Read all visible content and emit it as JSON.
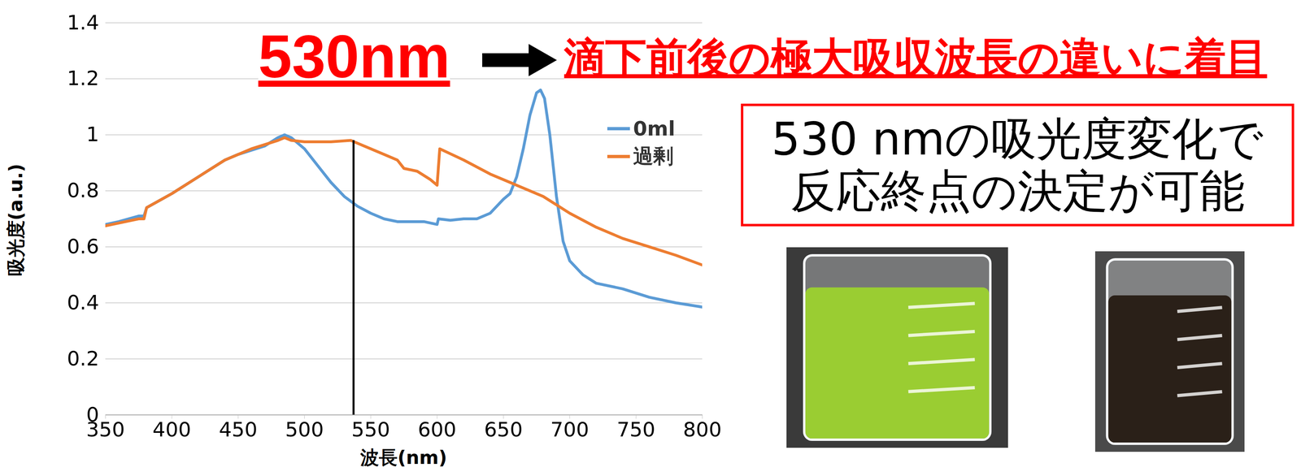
{
  "chart_data": {
    "type": "line",
    "x_label": "波長(nm)",
    "y_label": "吸光度(a.u.)",
    "xlim": [
      350,
      800
    ],
    "xticks": [
      350,
      400,
      450,
      500,
      550,
      600,
      650,
      700,
      750,
      800
    ],
    "ylim": [
      0,
      1.4
    ],
    "yticks": [
      0,
      0.2,
      0.4,
      0.6,
      0.8,
      1,
      1.2,
      1.4
    ],
    "grid": true,
    "legend": "upper right",
    "series": [
      {
        "name": "0ml",
        "color": "#5b9bd5",
        "x": [
          350,
          360,
          375,
          379,
          381,
          400,
          420,
          440,
          450,
          460,
          470,
          480,
          485,
          490,
          500,
          510,
          520,
          530,
          540,
          550,
          560,
          570,
          580,
          590,
          600,
          601,
          610,
          620,
          630,
          640,
          650,
          655,
          660,
          665,
          670,
          675,
          678,
          681,
          685,
          690,
          695,
          700,
          710,
          720,
          740,
          760,
          780,
          800
        ],
        "values": [
          0.68,
          0.69,
          0.71,
          0.71,
          0.74,
          0.79,
          0.85,
          0.91,
          0.93,
          0.945,
          0.96,
          0.99,
          1.0,
          0.99,
          0.95,
          0.89,
          0.83,
          0.78,
          0.745,
          0.72,
          0.7,
          0.69,
          0.69,
          0.69,
          0.68,
          0.7,
          0.695,
          0.7,
          0.7,
          0.72,
          0.77,
          0.79,
          0.85,
          0.95,
          1.07,
          1.15,
          1.16,
          1.13,
          1.0,
          0.78,
          0.62,
          0.55,
          0.5,
          0.47,
          0.45,
          0.42,
          0.4,
          0.385
        ]
      },
      {
        "name": "過剰",
        "color": "#ed7d31",
        "x": [
          350,
          375,
          379,
          381,
          400,
          420,
          440,
          460,
          480,
          485,
          490,
          500,
          520,
          535,
          545,
          560,
          570,
          575,
          585,
          595,
          600,
          602,
          620,
          640,
          660,
          680,
          700,
          720,
          740,
          760,
          780,
          800
        ],
        "values": [
          0.675,
          0.7,
          0.7,
          0.74,
          0.79,
          0.85,
          0.91,
          0.95,
          0.98,
          0.99,
          0.98,
          0.975,
          0.975,
          0.98,
          0.96,
          0.93,
          0.91,
          0.88,
          0.87,
          0.84,
          0.82,
          0.95,
          0.91,
          0.86,
          0.82,
          0.78,
          0.72,
          0.67,
          0.63,
          0.6,
          0.57,
          0.535
        ]
      }
    ],
    "vline": {
      "x": 537,
      "y": [
        0,
        0.98
      ],
      "color": "#000000"
    },
    "annotations": {
      "highlight": "530nm",
      "headline": "滴下前後の極大吸収波長の違いに着目",
      "conclusion": [
        "530 nmの吸光度変化で",
        "反応終点の決定が可能"
      ]
    }
  }
}
